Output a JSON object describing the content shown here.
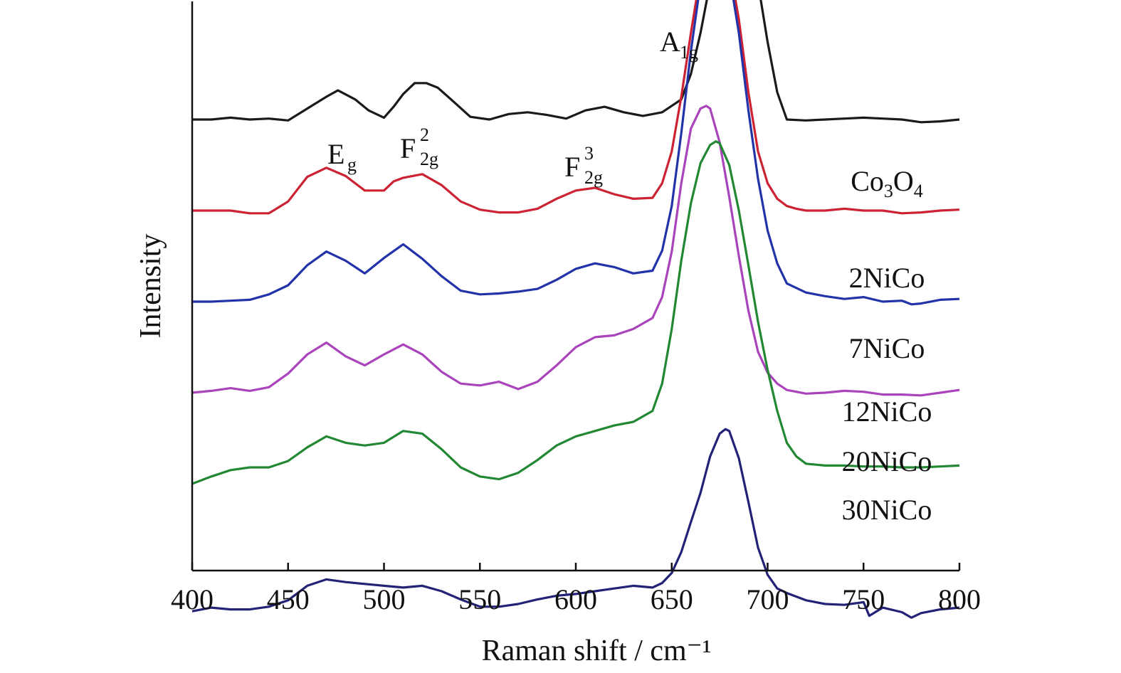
{
  "chart_data": {
    "type": "line",
    "xlabel": "Raman shift / cm⁻¹",
    "ylabel": "Intensity",
    "xlim": [
      400,
      800
    ],
    "xticks": [
      "400",
      "450",
      "500",
      "550",
      "600",
      "650",
      "700",
      "750",
      "800"
    ],
    "y_ticks_shown": false,
    "grid": false,
    "legend": "none (series labeled at right end of curves)",
    "series": [
      {
        "name": "Co3O4",
        "label_main": "Co",
        "label_sub1": "3",
        "label_mid": "O",
        "label_sub2": "4",
        "color": "#1a1a1a",
        "x": [
          400,
          410,
          420,
          430,
          440,
          450,
          460,
          470,
          476,
          485,
          492,
          500,
          505,
          510,
          516,
          522,
          528,
          535,
          545,
          555,
          565,
          575,
          585,
          595,
          605,
          615,
          625,
          635,
          645,
          655,
          660,
          665,
          670,
          675,
          680,
          683,
          686,
          690,
          695,
          700,
          705,
          710,
          720,
          730,
          740,
          750,
          760,
          770,
          780,
          790,
          800
        ],
        "y": [
          4.0,
          4.0,
          4.02,
          4.0,
          4.01,
          3.99,
          4.12,
          4.25,
          4.32,
          4.22,
          4.1,
          4.02,
          4.14,
          4.28,
          4.4,
          4.4,
          4.35,
          4.22,
          4.03,
          4.0,
          4.06,
          4.08,
          4.05,
          4.01,
          4.1,
          4.14,
          4.08,
          4.04,
          4.08,
          4.22,
          4.5,
          4.95,
          5.5,
          6.0,
          6.28,
          6.35,
          6.3,
          6.05,
          5.5,
          4.85,
          4.3,
          4.0,
          3.99,
          4.0,
          4.01,
          4.02,
          4.01,
          4.0,
          3.97,
          3.98,
          4.0
        ]
      },
      {
        "name": "2NiCo",
        "color": "#cc2233",
        "x": [
          400,
          410,
          420,
          430,
          440,
          450,
          460,
          470,
          480,
          490,
          500,
          505,
          510,
          520,
          530,
          540,
          550,
          560,
          570,
          580,
          590,
          600,
          610,
          620,
          630,
          640,
          645,
          650,
          655,
          660,
          665,
          670,
          673,
          675,
          680,
          685,
          690,
          695,
          700,
          705,
          710,
          715,
          720,
          730,
          740,
          750,
          760,
          770,
          780,
          790,
          800
        ],
        "y": [
          3.0,
          3.0,
          3.0,
          2.97,
          2.97,
          3.1,
          3.37,
          3.47,
          3.38,
          3.22,
          3.22,
          3.32,
          3.36,
          3.4,
          3.28,
          3.1,
          3.01,
          2.98,
          2.98,
          3.02,
          3.13,
          3.22,
          3.25,
          3.18,
          3.13,
          3.14,
          3.3,
          3.65,
          4.25,
          4.95,
          5.6,
          5.95,
          6.0,
          5.98,
          5.7,
          5.1,
          4.3,
          3.65,
          3.3,
          3.13,
          3.05,
          3.02,
          3.0,
          3.0,
          3.02,
          3.0,
          3.0,
          2.97,
          2.98,
          3.0,
          3.01
        ]
      },
      {
        "name": "7NiCo",
        "color": "#2233aa",
        "x": [
          400,
          410,
          420,
          430,
          440,
          450,
          460,
          470,
          480,
          490,
          500,
          510,
          520,
          530,
          540,
          550,
          560,
          570,
          580,
          590,
          600,
          610,
          620,
          630,
          640,
          645,
          650,
          655,
          660,
          665,
          670,
          673,
          675,
          680,
          685,
          690,
          695,
          700,
          705,
          710,
          720,
          730,
          740,
          750,
          760,
          770,
          775,
          780,
          790,
          800
        ],
        "y": [
          2.0,
          2.0,
          2.01,
          2.02,
          2.08,
          2.18,
          2.4,
          2.55,
          2.45,
          2.31,
          2.48,
          2.63,
          2.47,
          2.28,
          2.12,
          2.08,
          2.09,
          2.11,
          2.14,
          2.24,
          2.36,
          2.42,
          2.38,
          2.31,
          2.34,
          2.56,
          3.05,
          3.85,
          4.75,
          5.5,
          5.85,
          5.92,
          5.9,
          5.6,
          4.95,
          4.1,
          3.35,
          2.78,
          2.42,
          2.2,
          2.1,
          2.06,
          2.03,
          2.05,
          2.0,
          2.01,
          1.97,
          1.98,
          2.02,
          2.03
        ]
      },
      {
        "name": "12NiCo",
        "color": "#aa44bb",
        "x": [
          400,
          410,
          420,
          430,
          440,
          450,
          460,
          470,
          480,
          490,
          500,
          510,
          520,
          530,
          540,
          550,
          560,
          570,
          580,
          590,
          600,
          610,
          620,
          630,
          640,
          645,
          650,
          655,
          660,
          665,
          668,
          670,
          675,
          680,
          685,
          690,
          695,
          700,
          705,
          710,
          715,
          720,
          730,
          740,
          750,
          760,
          770,
          780,
          790,
          800
        ],
        "y": [
          1.0,
          1.02,
          1.05,
          1.02,
          1.06,
          1.21,
          1.42,
          1.55,
          1.4,
          1.3,
          1.42,
          1.53,
          1.42,
          1.23,
          1.1,
          1.08,
          1.12,
          1.04,
          1.12,
          1.3,
          1.5,
          1.61,
          1.63,
          1.7,
          1.82,
          2.05,
          2.55,
          3.3,
          3.9,
          4.12,
          4.15,
          4.12,
          3.75,
          3.15,
          2.5,
          1.9,
          1.45,
          1.22,
          1.1,
          1.03,
          1.01,
          0.99,
          1.0,
          1.02,
          1.01,
          0.98,
          0.98,
          0.97,
          1.0,
          1.03
        ]
      },
      {
        "name": "20NiCo",
        "color": "#228833",
        "x": [
          400,
          410,
          420,
          430,
          440,
          450,
          460,
          470,
          480,
          490,
          500,
          510,
          520,
          530,
          540,
          550,
          560,
          570,
          580,
          590,
          600,
          610,
          620,
          630,
          640,
          645,
          650,
          655,
          660,
          665,
          670,
          673,
          675,
          680,
          685,
          690,
          695,
          700,
          705,
          710,
          715,
          720,
          730,
          740,
          750,
          760,
          770,
          780,
          790,
          800
        ],
        "y": [
          0.0,
          0.08,
          0.15,
          0.18,
          0.18,
          0.25,
          0.4,
          0.52,
          0.45,
          0.42,
          0.45,
          0.58,
          0.55,
          0.38,
          0.18,
          0.08,
          0.05,
          0.12,
          0.26,
          0.42,
          0.52,
          0.58,
          0.64,
          0.68,
          0.8,
          1.1,
          1.7,
          2.45,
          3.08,
          3.52,
          3.72,
          3.76,
          3.74,
          3.5,
          3.0,
          2.4,
          1.78,
          1.25,
          0.8,
          0.45,
          0.3,
          0.22,
          0.2,
          0.2,
          0.19,
          0.19,
          0.18,
          0.18,
          0.19,
          0.2
        ]
      },
      {
        "name": "30NiCo",
        "color": "#222277",
        "x": [
          400,
          410,
          420,
          430,
          440,
          450,
          460,
          470,
          480,
          490,
          500,
          510,
          520,
          530,
          540,
          550,
          560,
          570,
          580,
          590,
          600,
          610,
          620,
          630,
          640,
          645,
          650,
          655,
          660,
          665,
          670,
          675,
          678,
          680,
          685,
          690,
          695,
          700,
          705,
          710,
          720,
          730,
          740,
          750,
          753,
          760,
          770,
          775,
          780,
          790,
          800
        ],
        "y": [
          -1.4,
          -1.36,
          -1.38,
          -1.38,
          -1.35,
          -1.28,
          -1.12,
          -1.05,
          -1.08,
          -1.1,
          -1.12,
          -1.14,
          -1.12,
          -1.18,
          -1.27,
          -1.35,
          -1.35,
          -1.32,
          -1.27,
          -1.23,
          -1.21,
          -1.18,
          -1.15,
          -1.12,
          -1.14,
          -1.09,
          -0.98,
          -0.75,
          -0.42,
          -0.1,
          0.3,
          0.55,
          0.6,
          0.58,
          0.28,
          -0.2,
          -0.7,
          -1.0,
          -1.15,
          -1.2,
          -1.28,
          -1.32,
          -1.33,
          -1.3,
          -1.45,
          -1.36,
          -1.41,
          -1.47,
          -1.42,
          -1.38,
          -1.36
        ]
      }
    ],
    "annotations": [
      {
        "main": "E",
        "sub": "g",
        "sup": "",
        "x": 476
      },
      {
        "main": "F",
        "sub": "2g",
        "sup": "2",
        "x": 516
      },
      {
        "main": "F",
        "sub": "2g",
        "sup": "3",
        "x": 610
      },
      {
        "main": "A",
        "sub": "1g",
        "sup": "",
        "x": 683
      }
    ]
  }
}
